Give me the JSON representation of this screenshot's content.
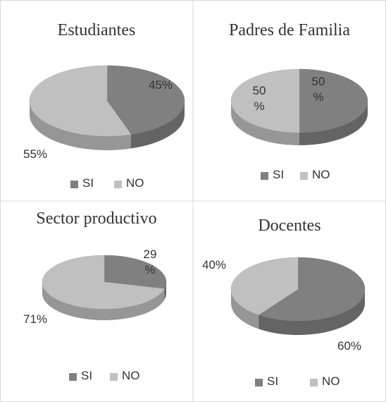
{
  "chart_data": [
    {
      "type": "pie",
      "title": "Estudiantes",
      "categories": [
        "SI",
        "NO"
      ],
      "values": [
        45,
        55
      ],
      "value_labels": [
        "45%",
        "55%"
      ],
      "colors": [
        "#808080",
        "#c0c0c0"
      ]
    },
    {
      "type": "pie",
      "title": "Padres de Familia",
      "categories": [
        "SI",
        "NO"
      ],
      "values": [
        50,
        50
      ],
      "value_labels": [
        "50 %",
        "50 %"
      ],
      "colors": [
        "#808080",
        "#c0c0c0"
      ]
    },
    {
      "type": "pie",
      "title": "Sector productivo",
      "categories": [
        "SI",
        "NO"
      ],
      "values": [
        29,
        71
      ],
      "value_labels": [
        "29 %",
        "71%"
      ],
      "colors": [
        "#808080",
        "#c0c0c0"
      ]
    },
    {
      "type": "pie",
      "title": "Docentes",
      "categories": [
        "SI",
        "NO"
      ],
      "values": [
        60,
        40
      ],
      "value_labels": [
        "60%",
        "40%"
      ],
      "colors": [
        "#808080",
        "#c0c0c0"
      ]
    }
  ]
}
